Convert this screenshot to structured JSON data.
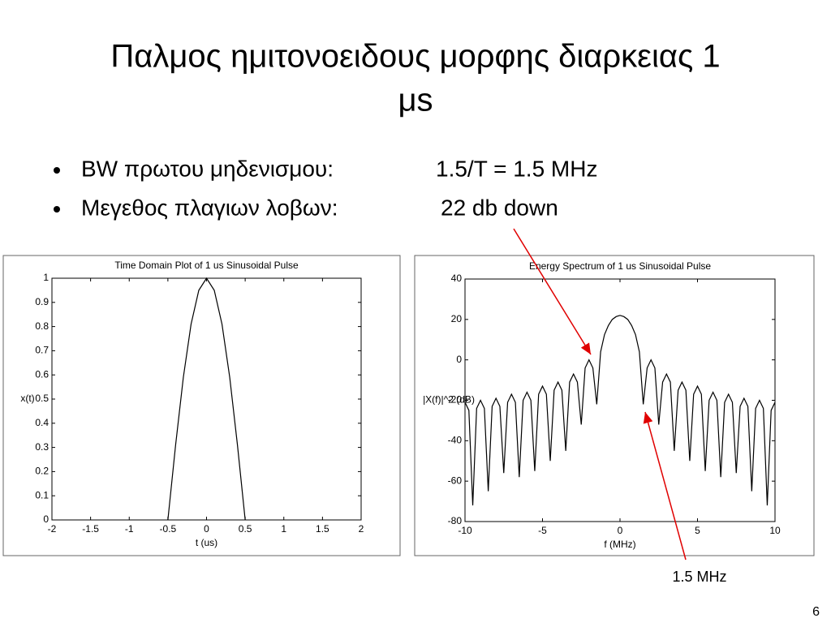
{
  "slide": {
    "title_line1": "Παλμος ημιτονοειδους μορφης διαρκειας 1",
    "title_line2": "μs",
    "bullets": [
      {
        "label": "BW πρωτου μηδενισμου:",
        "value": "1.5/T =  1.5 MHz"
      },
      {
        "label": "Μεγεθος πλαγιων λοβων:",
        "value": "22 db down"
      }
    ],
    "annotation": "1.5 MHz",
    "page_number": "6"
  },
  "chart_data": [
    {
      "type": "line",
      "title": "Time Domain Plot of 1 us Sinusoidal Pulse",
      "x_label": "t (us)",
      "y_label": "x(t)",
      "x": [
        -0.5,
        -0.4,
        -0.3,
        -0.2,
        -0.1,
        0,
        0.1,
        0.2,
        0.3,
        0.4,
        0.5
      ],
      "values": [
        0,
        0.31,
        0.59,
        0.81,
        0.95,
        1,
        0.95,
        0.81,
        0.59,
        0.31,
        0
      ],
      "color": "#000000",
      "xlim": [
        -2,
        2
      ],
      "xticks": [
        -2,
        -1.5,
        -1,
        -0.5,
        0,
        0.5,
        1,
        1.5,
        2
      ],
      "ylim": [
        0,
        1
      ],
      "yticks": [
        0,
        0.1,
        0.2,
        0.3,
        0.4,
        0.5,
        0.6,
        0.7,
        0.8,
        0.9,
        1
      ],
      "grid": false
    },
    {
      "type": "line",
      "title": "Energy Spectrum of 1 us Sinusoidal Pulse",
      "x_label": "f (MHz)",
      "y_label": "|X(f)|^2 (dB)",
      "x": [
        -10,
        -9.75,
        -9.5,
        -9.25,
        -9,
        -8.75,
        -8.5,
        -8.25,
        -8,
        -7.75,
        -7.5,
        -7.25,
        -7,
        -6.75,
        -6.5,
        -6.25,
        -6,
        -5.75,
        -5.5,
        -5.25,
        -5,
        -4.75,
        -4.5,
        -4.25,
        -4,
        -3.75,
        -3.5,
        -3.25,
        -3,
        -2.75,
        -2.5,
        -2.25,
        -2,
        -1.75,
        -1.5,
        -1.25,
        -1,
        -0.75,
        -0.5,
        -0.25,
        0,
        0.25,
        0.5,
        0.75,
        1,
        1.25,
        1.5,
        1.75,
        2,
        2.25,
        2.5,
        2.75,
        3,
        3.25,
        3.5,
        3.75,
        4,
        4.25,
        4.5,
        4.75,
        5,
        5.25,
        5.5,
        5.75,
        6,
        6.25,
        6.5,
        6.75,
        7,
        7.25,
        7.5,
        7.75,
        8,
        8.25,
        8.5,
        8.75,
        9,
        9.25,
        9.5,
        9.75,
        10
      ],
      "values": [
        -21,
        -25,
        -72,
        -24,
        -20,
        -24,
        -65,
        -23,
        -19,
        -23,
        -56,
        -21,
        -17,
        -21,
        -58,
        -20,
        -16,
        -20,
        -55,
        -17,
        -13,
        -17,
        -50,
        -15,
        -11,
        -15,
        -45,
        -11,
        -7,
        -11,
        -32,
        -4,
        0,
        -4,
        -22,
        4,
        12.5,
        17,
        20,
        21.4,
        22,
        21.4,
        20,
        17,
        12.5,
        4,
        -22,
        -4,
        0,
        -4,
        -32,
        -11,
        -7,
        -11,
        -45,
        -15,
        -11,
        -15,
        -50,
        -17,
        -13,
        -17,
        -55,
        -20,
        -16,
        -20,
        -58,
        -21,
        -17,
        -21,
        -56,
        -23,
        -19,
        -23,
        -65,
        -24,
        -20,
        -24,
        -72,
        -25,
        -21
      ],
      "color": "#000000",
      "xlim": [
        -10,
        10
      ],
      "xticks": [
        -10,
        -5,
        0,
        5,
        10
      ],
      "ylim": [
        -80,
        40
      ],
      "yticks": [
        -80,
        -60,
        -40,
        -20,
        0,
        20,
        40
      ],
      "grid": false
    }
  ]
}
